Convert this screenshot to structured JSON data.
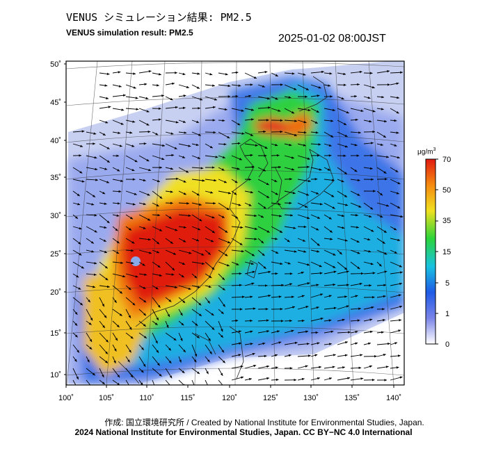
{
  "header": {
    "title_jp": "VENUS シミュレーション結果: PM2.5",
    "title_en": "VENUS simulation result: PM2.5",
    "timestamp": "2025-01-02 08:00JST"
  },
  "map": {
    "lat_ticks": [
      "50˚",
      "45˚",
      "40˚",
      "35˚",
      "30˚",
      "25˚",
      "20˚",
      "15˚",
      "10˚"
    ],
    "lon_ticks": [
      "100˚",
      "105˚",
      "110˚",
      "115˚",
      "120˚",
      "125˚",
      "130˚",
      "135˚",
      "140˚"
    ]
  },
  "colorbar": {
    "unit": "μg/m",
    "unit_sup": "3",
    "labels": [
      "70",
      "50",
      "35",
      "15",
      "5",
      "1",
      "0"
    ],
    "colors": [
      "#ffffff",
      "#7a84e8",
      "#1e5ae6",
      "#18c2e0",
      "#2bd43a",
      "#f0e020",
      "#f58a10",
      "#e01a10"
    ]
  },
  "footer": {
    "credit_line1": "作成: 国立環境研究所 / Created by National Institute for Environmental Studies, Japan.",
    "credit_line2": "2024 National Institute for Environmental Studies, Japan. CC BY−NC 4.0 International"
  }
}
